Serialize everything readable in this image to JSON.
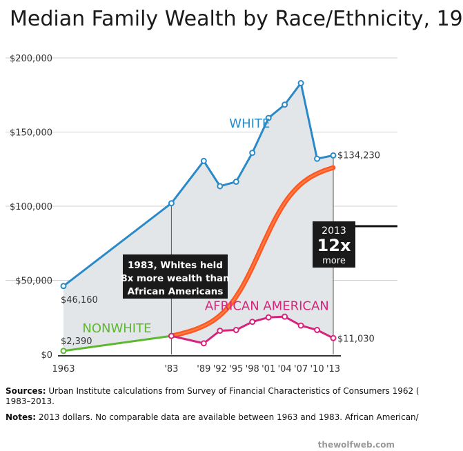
{
  "title": "Median Family Wealth by Race/Ethnicity, 19",
  "chart_data": {
    "type": "line",
    "title": "Median Family Wealth by Race/Ethnicity, 19",
    "x_tick_labels": [
      {
        "x": 1963,
        "label": "1963"
      },
      {
        "x": 1983,
        "label": "'83"
      },
      {
        "x": 1989,
        "label": "'89"
      },
      {
        "x": 1992,
        "label": "'92"
      },
      {
        "x": 1995,
        "label": "'95"
      },
      {
        "x": 1998,
        "label": "'98"
      },
      {
        "x": 2001,
        "label": "'01"
      },
      {
        "x": 2004,
        "label": "'04"
      },
      {
        "x": 2007,
        "label": "'07"
      },
      {
        "x": 2010,
        "label": "'10"
      },
      {
        "x": 2013,
        "label": "'13"
      }
    ],
    "y_ticks": [
      {
        "value": 0,
        "label": "$0"
      },
      {
        "value": 50000,
        "label": "$50,000"
      },
      {
        "value": 100000,
        "label": "$100,000"
      },
      {
        "value": 150000,
        "label": "$150,000"
      },
      {
        "value": 200000,
        "label": "$200,000"
      }
    ],
    "xlim": [
      1963,
      2013
    ],
    "ylim": [
      0,
      200000
    ],
    "grid": true,
    "series": [
      {
        "name": "WHITE",
        "color": "#2a8ac8",
        "x": [
          1963,
          1983,
          1989,
          1992,
          1995,
          1998,
          2001,
          2004,
          2007,
          2010,
          2013
        ],
        "y": [
          46160,
          102000,
          130500,
          113500,
          116500,
          136000,
          159500,
          168500,
          183000,
          132000,
          134230
        ]
      },
      {
        "name": "NONWHITE",
        "color": "#5cb82e",
        "x": [
          1963,
          1983
        ],
        "y": [
          2390,
          12500
        ]
      },
      {
        "name": "AFRICAN AMERICAN",
        "color": "#d8237c",
        "x": [
          1983,
          1989,
          1992,
          1995,
          1998,
          2001,
          2004,
          2007,
          2010,
          2013
        ],
        "y": [
          12500,
          7500,
          16000,
          16500,
          22000,
          25000,
          25500,
          19500,
          16500,
          11030
        ]
      }
    ],
    "ratio_curve": {
      "color": "#ff5722",
      "x_start": 1983,
      "x_end": 2013,
      "y_start": 12500,
      "y_end": 126000
    },
    "value_labels": [
      {
        "text": "$46,160",
        "x": 1963,
        "y": 46160
      },
      {
        "text": "$2,390",
        "x": 1963,
        "y": 2390
      },
      {
        "text": "$134,230",
        "x": 2013,
        "y": 134230
      },
      {
        "text": "$11,030",
        "x": 2013,
        "y": 11030
      }
    ],
    "callout_1983": [
      "1983, Whites held",
      "8x more wealth than",
      "African Americans"
    ],
    "callout_2013": {
      "year": "2013",
      "ratio": "12x",
      "word": "more"
    }
  },
  "footer": {
    "sources_label": "Sources:",
    "sources_text": " Urban Institute calculations from Survey of Financial Characteristics of Consumers 1962 (",
    "sources_line2": "1983–2013.",
    "notes_label": "Notes:",
    "notes_text": " 2013 dollars. No comparable data are available between 1963 and 1983. African American/"
  },
  "watermark": "thewolfweb.com"
}
